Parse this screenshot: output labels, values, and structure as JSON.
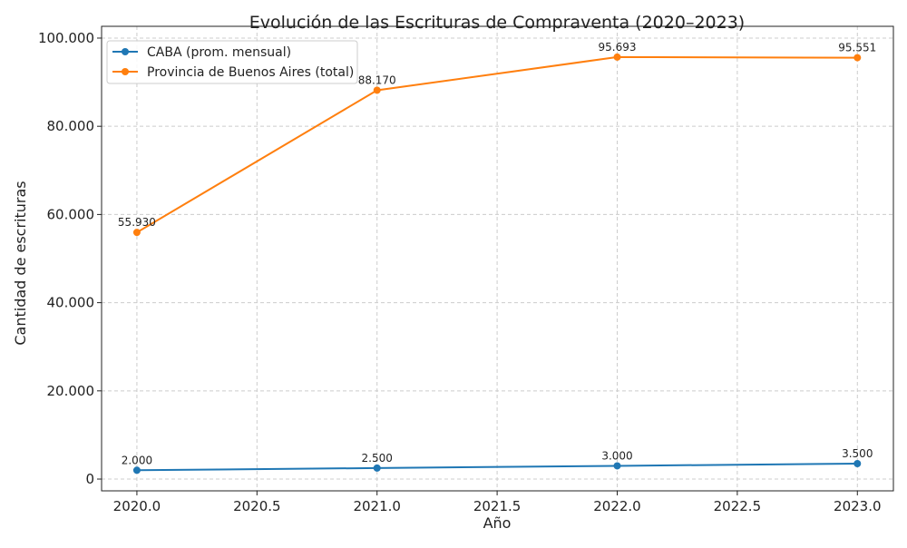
{
  "chart_data": {
    "type": "line",
    "title": "Evolución de las Escrituras de Compraventa (2020–2023)",
    "xlabel": "Año",
    "ylabel": "Cantidad de escrituras",
    "xlim": [
      2019.853,
      2023.15
    ],
    "ylim": [
      -2670,
      102670
    ],
    "xticks": [
      2020.0,
      2020.5,
      2021.0,
      2021.5,
      2022.0,
      2022.5,
      2023.0
    ],
    "xtick_labels": [
      "2020.0",
      "2020.5",
      "2021.0",
      "2021.5",
      "2022.0",
      "2022.5",
      "2023.0"
    ],
    "yticks": [
      0,
      20000,
      40000,
      60000,
      80000,
      100000
    ],
    "ytick_labels": [
      "0",
      "20.000",
      "40.000",
      "60.000",
      "80.000",
      "100.000"
    ],
    "grid": true,
    "grid_style": "dashed",
    "legend_position": "top-left",
    "x": [
      2020,
      2021,
      2022,
      2023
    ],
    "series": [
      {
        "name": "CABA (prom. mensual)",
        "color": "#1f77b4",
        "values": [
          2000,
          2500,
          3000,
          3500
        ],
        "labels": [
          "2.000",
          "2.500",
          "3.000",
          "3.500"
        ]
      },
      {
        "name": "Provincia de Buenos Aires (total)",
        "color": "#ff7f0e",
        "values": [
          55930,
          88170,
          95693,
          95551
        ],
        "labels": [
          "55.930",
          "88.170",
          "95.693",
          "95.551"
        ]
      }
    ]
  }
}
